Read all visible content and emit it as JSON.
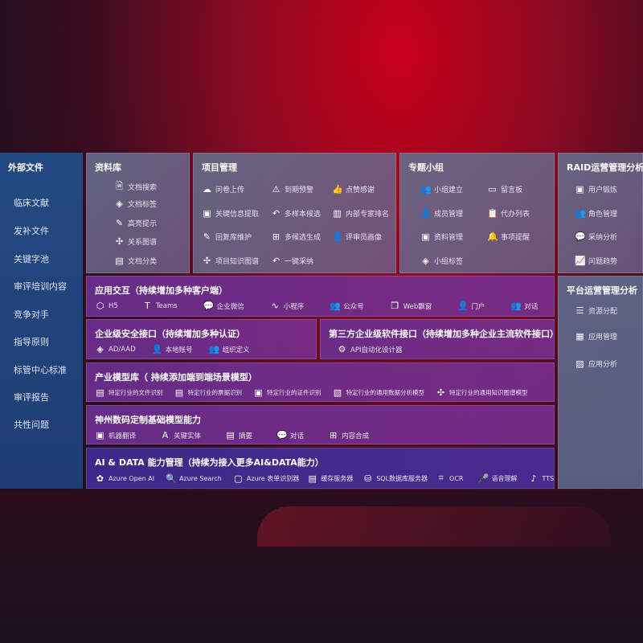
{
  "sidebar": {
    "title": "外部文件",
    "items": [
      "临床文献",
      "发补文件",
      "关键字池",
      "审评培训内容",
      "竞争对手",
      "指导原则",
      "标管中心标准",
      "审评报告",
      "共性问题"
    ]
  },
  "library": {
    "title": "资料库",
    "items": [
      {
        "icon": "doc-search-icon",
        "label": "文档搜索"
      },
      {
        "icon": "tag-icon",
        "label": "文档标签"
      },
      {
        "icon": "pen-icon",
        "label": "高亮提示"
      },
      {
        "icon": "graph-icon",
        "label": "关系图谱"
      },
      {
        "icon": "doc-category-icon",
        "label": "文档分类"
      }
    ]
  },
  "project": {
    "title": "项目管理",
    "items": [
      {
        "icon": "upload-cloud-icon",
        "label": "问卷上传"
      },
      {
        "icon": "alarm-icon",
        "label": "到期预警"
      },
      {
        "icon": "thumbs-up-icon",
        "label": "点赞感谢"
      },
      {
        "icon": "extract-icon",
        "label": "关键信息提取"
      },
      {
        "icon": "reply-icon",
        "label": "多样本候选"
      },
      {
        "icon": "ranking-icon",
        "label": "内部专家排名"
      },
      {
        "icon": "edit-icon",
        "label": "回复库维护"
      },
      {
        "icon": "puzzle-icon",
        "label": "多候选生成"
      },
      {
        "icon": "user-icon",
        "label": "评审员画像"
      },
      {
        "icon": "knowledge-graph-icon",
        "label": "项目知识图谱"
      },
      {
        "icon": "reply-icon",
        "label": "一键采纳"
      }
    ]
  },
  "group": {
    "title": "专题小组",
    "items": [
      {
        "icon": "users-icon",
        "label": "小组建立"
      },
      {
        "icon": "bbs-icon",
        "label": "留言板"
      },
      {
        "icon": "user-add-icon",
        "label": "成员管理"
      },
      {
        "icon": "clipboard-icon",
        "label": "代办列表"
      },
      {
        "icon": "folder-icon",
        "label": "资料管理"
      },
      {
        "icon": "bell-icon",
        "label": "事项提醒"
      },
      {
        "icon": "tag-icon",
        "label": "小组标签"
      }
    ]
  },
  "raid": {
    "title": "RAID运营管理分析",
    "items": [
      {
        "icon": "id-card-icon",
        "label": "用户锻炼"
      },
      {
        "icon": "users-icon",
        "label": "角色管理"
      },
      {
        "icon": "qa-icon",
        "label": "采纳分析"
      },
      {
        "icon": "trend-icon",
        "label": "问题趋势"
      }
    ]
  },
  "platform": {
    "title": "平台运营管理分析",
    "items": [
      {
        "icon": "list-icon",
        "label": "资源分配"
      },
      {
        "icon": "apps-icon",
        "label": "应用管理"
      },
      {
        "icon": "analysis-icon",
        "label": "应用分析"
      }
    ]
  },
  "interaction": {
    "title": "应用交互（持续增加多种客户端）",
    "items": [
      {
        "icon": "html5-icon",
        "label": "H5"
      },
      {
        "icon": "teams-icon",
        "label": "Teams"
      },
      {
        "icon": "wecom-icon",
        "label": "企业微信"
      },
      {
        "icon": "miniprogram-icon",
        "label": "小程序"
      },
      {
        "icon": "official-account-icon",
        "label": "公众号"
      },
      {
        "icon": "window-icon",
        "label": "Web飘窗"
      },
      {
        "icon": "portal-icon",
        "label": "门户"
      },
      {
        "icon": "chat-icon",
        "label": "对话"
      }
    ]
  },
  "security": {
    "title": "企业级安全接口（持续增加多种认证）",
    "items": [
      {
        "icon": "ad-icon",
        "label": "AD/AAD"
      },
      {
        "icon": "local-account-icon",
        "label": "本地账号"
      },
      {
        "icon": "org-icon",
        "label": "组织定义"
      }
    ]
  },
  "thirdparty": {
    "title": "第三方企业级软件接口（持续增加多种企业主流软件接口）",
    "items": [
      {
        "icon": "gear-icon",
        "label": "API自动化设计器"
      }
    ]
  },
  "models": {
    "title": "产业模型库（ 持续添加端到端场景模型）",
    "items": [
      {
        "icon": "file-icon",
        "label": "特定行业的文件识别"
      },
      {
        "icon": "receipt-icon",
        "label": "特定行业的票据识别"
      },
      {
        "icon": "id-card-icon",
        "label": "特定行业的证件识别"
      },
      {
        "icon": "chart-icon",
        "label": "特定行业的通用数据分析模型"
      },
      {
        "icon": "knowledge-graph-icon",
        "label": "特定行业的通用知识图谱模型"
      }
    ]
  },
  "base": {
    "title": "神州数码定制基础模型能力",
    "items": [
      {
        "icon": "translate-icon",
        "label": "机器翻译"
      },
      {
        "icon": "entity-icon",
        "label": "关键实体"
      },
      {
        "icon": "summary-icon",
        "label": "摘要"
      },
      {
        "icon": "chat-icon",
        "label": "对话"
      },
      {
        "icon": "puzzle-icon",
        "label": "内容合成"
      }
    ]
  },
  "aidata": {
    "title": "AI & DATA 能力管理（持续为接入更多AI&DATA能力）",
    "items": [
      {
        "icon": "openai-icon",
        "label": "Azure Open AI"
      },
      {
        "icon": "search-icon",
        "label": "Azure Search"
      },
      {
        "icon": "form-icon",
        "label": "Azure 表单识别器"
      },
      {
        "icon": "cache-icon",
        "label": "缓存服务器"
      },
      {
        "icon": "database-icon",
        "label": "SQL数据库服务器"
      },
      {
        "icon": "ocr-icon",
        "label": "OCR"
      },
      {
        "icon": "speech-icon",
        "label": "语音理解"
      },
      {
        "icon": "tts-icon",
        "label": "TTS"
      }
    ]
  }
}
